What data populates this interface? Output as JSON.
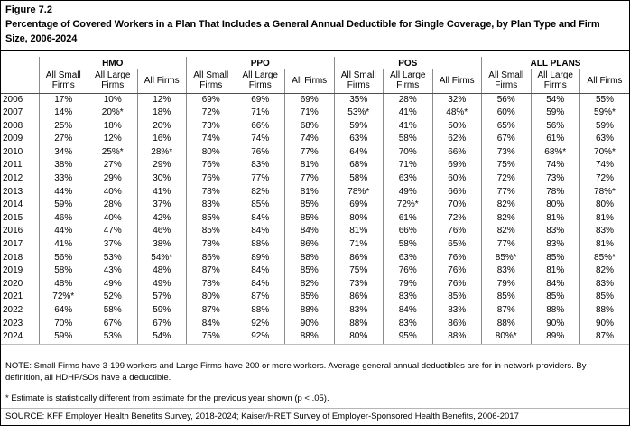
{
  "figure": {
    "label": "Figure 7.2",
    "title": "Percentage of Covered Workers in a Plan That Includes a General Annual Deductible for Single Coverage, by Plan Type and Firm Size, 2006-2024"
  },
  "table": {
    "groups": [
      "HMO",
      "PPO",
      "POS",
      "ALL PLANS"
    ],
    "subheaders": [
      "All Small Firms",
      "All Large Firms",
      "All Firms"
    ],
    "rows": [
      {
        "year": "2006",
        "values": [
          "17%",
          "10%",
          "12%",
          "69%",
          "69%",
          "69%",
          "35%",
          "28%",
          "32%",
          "56%",
          "54%",
          "55%"
        ]
      },
      {
        "year": "2007",
        "values": [
          "14%",
          "20%*",
          "18%",
          "72%",
          "71%",
          "71%",
          "53%*",
          "41%",
          "48%*",
          "60%",
          "59%",
          "59%*"
        ]
      },
      {
        "year": "2008",
        "values": [
          "25%",
          "18%",
          "20%",
          "73%",
          "66%",
          "68%",
          "59%",
          "41%",
          "50%",
          "65%",
          "56%",
          "59%"
        ]
      },
      {
        "year": "2009",
        "values": [
          "27%",
          "12%",
          "16%",
          "74%",
          "74%",
          "74%",
          "63%",
          "58%",
          "62%",
          "67%",
          "61%",
          "63%"
        ]
      },
      {
        "year": "2010",
        "values": [
          "34%",
          "25%*",
          "28%*",
          "80%",
          "76%",
          "77%",
          "64%",
          "70%",
          "66%",
          "73%",
          "68%*",
          "70%*"
        ]
      },
      {
        "year": "2011",
        "values": [
          "38%",
          "27%",
          "29%",
          "76%",
          "83%",
          "81%",
          "68%",
          "71%",
          "69%",
          "75%",
          "74%",
          "74%"
        ]
      },
      {
        "year": "2012",
        "values": [
          "33%",
          "29%",
          "30%",
          "76%",
          "77%",
          "77%",
          "58%",
          "63%",
          "60%",
          "72%",
          "73%",
          "72%"
        ]
      },
      {
        "year": "2013",
        "values": [
          "44%",
          "40%",
          "41%",
          "78%",
          "82%",
          "81%",
          "78%*",
          "49%",
          "66%",
          "77%",
          "78%",
          "78%*"
        ]
      },
      {
        "year": "2014",
        "values": [
          "59%",
          "28%",
          "37%",
          "83%",
          "85%",
          "85%",
          "69%",
          "72%*",
          "70%",
          "82%",
          "80%",
          "80%"
        ]
      },
      {
        "year": "2015",
        "values": [
          "46%",
          "40%",
          "42%",
          "85%",
          "84%",
          "85%",
          "80%",
          "61%",
          "72%",
          "82%",
          "81%",
          "81%"
        ]
      },
      {
        "year": "2016",
        "values": [
          "44%",
          "47%",
          "46%",
          "85%",
          "84%",
          "84%",
          "81%",
          "66%",
          "76%",
          "82%",
          "83%",
          "83%"
        ]
      },
      {
        "year": "2017",
        "values": [
          "41%",
          "37%",
          "38%",
          "78%",
          "88%",
          "86%",
          "71%",
          "58%",
          "65%",
          "77%",
          "83%",
          "81%"
        ]
      },
      {
        "year": "2018",
        "values": [
          "56%",
          "53%",
          "54%*",
          "86%",
          "89%",
          "88%",
          "86%",
          "63%",
          "76%",
          "85%*",
          "85%",
          "85%*"
        ]
      },
      {
        "year": "2019",
        "values": [
          "58%",
          "43%",
          "48%",
          "87%",
          "84%",
          "85%",
          "75%",
          "76%",
          "76%",
          "83%",
          "81%",
          "82%"
        ]
      },
      {
        "year": "2020",
        "values": [
          "48%",
          "49%",
          "49%",
          "78%",
          "84%",
          "82%",
          "73%",
          "79%",
          "76%",
          "79%",
          "84%",
          "83%"
        ]
      },
      {
        "year": "2021",
        "values": [
          "72%*",
          "52%",
          "57%",
          "80%",
          "87%",
          "85%",
          "86%",
          "83%",
          "85%",
          "85%",
          "85%",
          "85%"
        ]
      },
      {
        "year": "2022",
        "values": [
          "64%",
          "58%",
          "59%",
          "87%",
          "88%",
          "88%",
          "83%",
          "84%",
          "83%",
          "87%",
          "88%",
          "88%"
        ]
      },
      {
        "year": "2023",
        "values": [
          "70%",
          "67%",
          "67%",
          "84%",
          "92%",
          "90%",
          "88%",
          "83%",
          "86%",
          "88%",
          "90%",
          "90%"
        ]
      },
      {
        "year": "2024",
        "values": [
          "59%",
          "53%",
          "54%",
          "75%",
          "92%",
          "88%",
          "80%",
          "95%",
          "88%",
          "80%*",
          "89%",
          "87%"
        ]
      }
    ]
  },
  "notes": {
    "note": "NOTE: Small Firms have 3-199 workers and Large Firms have 200 or more workers. Average general annual deductibles are for in-network providers. By definition, all HDHP/SOs have a deductible.",
    "estimate": "* Estimate is statistically different from estimate for the previous year shown (p < .05).",
    "source": "SOURCE: KFF Employer Health Benefits Survey, 2018-2024; Kaiser/HRET Survey of Employer-Sponsored Health Benefits, 2006-2017"
  },
  "colors": {
    "text": "#000000",
    "title_rule": "#000000",
    "header_rule": "#4d4d4d",
    "column_rule": "#8c8c8c",
    "bottom_rule": "#bdbdbd"
  }
}
